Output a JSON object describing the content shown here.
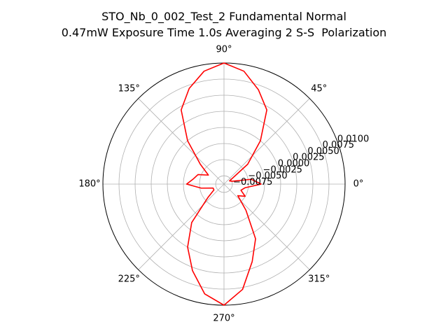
{
  "title_line_1": "STO_Nb_0_002_Test_2 Fundamental Normal",
  "title_line_2": "0.47mW Exposure Time 1.0s Averaging 2 S-S  Polarization",
  "chart_data": {
    "type": "line",
    "projection": "polar",
    "theta_unit": "degrees",
    "theta_ticks": [
      {
        "angle": 0,
        "label": "0°"
      },
      {
        "angle": 45,
        "label": "45°"
      },
      {
        "angle": 90,
        "label": "90°"
      },
      {
        "angle": 135,
        "label": "135°"
      },
      {
        "angle": 180,
        "label": "180°"
      },
      {
        "angle": 225,
        "label": "225°"
      },
      {
        "angle": 270,
        "label": "270°"
      },
      {
        "angle": 315,
        "label": "315°"
      }
    ],
    "r_ticks": [
      {
        "value": -0.0075,
        "label": "−0.0075"
      },
      {
        "value": -0.005,
        "label": "−0.0050"
      },
      {
        "value": -0.0025,
        "label": "−0.0025"
      },
      {
        "value": 0.0,
        "label": "0.0000"
      },
      {
        "value": 0.0025,
        "label": "0.0025"
      },
      {
        "value": 0.005,
        "label": "0.0050"
      },
      {
        "value": 0.0075,
        "label": "0.0075"
      },
      {
        "value": 0.01,
        "label": "0.0100"
      }
    ],
    "r_range": [
      -0.0088,
      0.01
    ],
    "r_label_angle": 22.5,
    "grid": true,
    "series": [
      {
        "color": "#ff0000",
        "theta": [
          0,
          10,
          20,
          30,
          40,
          50,
          60,
          70,
          80,
          90,
          100,
          110,
          120,
          130,
          140,
          150,
          160,
          170,
          180,
          190,
          200,
          210,
          220,
          230,
          240,
          250,
          260,
          270,
          280,
          290,
          300,
          310,
          320,
          330,
          340,
          350,
          360
        ],
        "r": [
          -0.003,
          -0.0045,
          -0.0075,
          -0.0078,
          -0.004,
          0.0,
          0.0045,
          0.0068,
          0.009,
          0.01,
          0.009,
          0.007,
          0.0045,
          0.0,
          -0.004,
          -0.006,
          -0.0045,
          -0.004,
          -0.003,
          -0.0052,
          -0.007,
          -0.007,
          -0.0055,
          -0.001,
          0.0025,
          0.0055,
          0.0085,
          0.01,
          0.0078,
          0.004,
          0.001,
          -0.0035,
          -0.006,
          -0.005,
          -0.006,
          -0.0055,
          -0.003
        ]
      }
    ]
  }
}
